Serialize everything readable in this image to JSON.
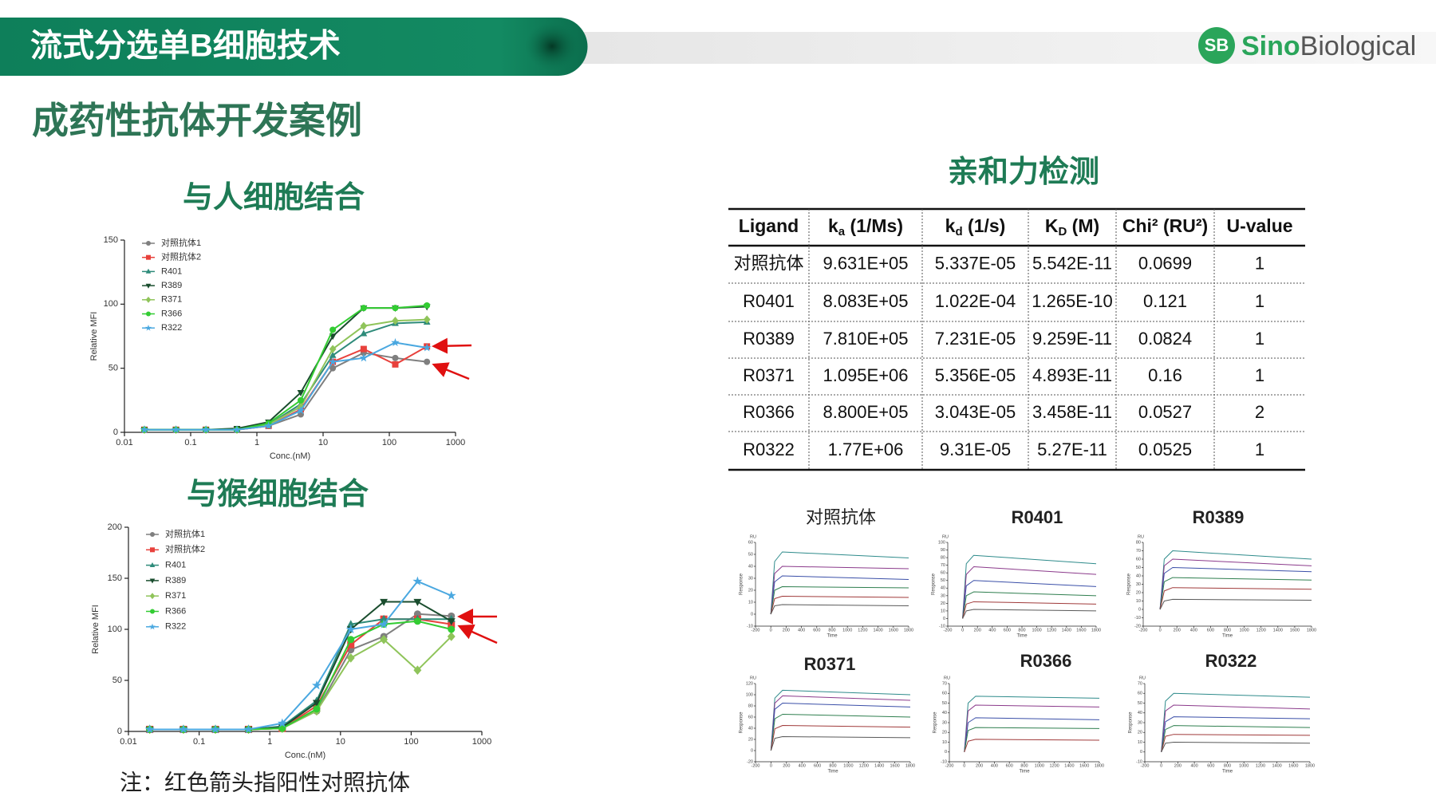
{
  "header": {
    "title": "流式分选单B细胞技术",
    "logo_mark": "SB",
    "logo_brand": "Sino",
    "logo_name": "Biological"
  },
  "section_title": "成药性抗体开发案例",
  "note": "注：红色箭头指阳性对照抗体",
  "affinity": {
    "title": "亲和力检测",
    "table": {
      "columns": [
        {
          "text": "Ligand"
        },
        {
          "text": "k",
          "sub": "a",
          "rest": " (1/Ms)"
        },
        {
          "text": "k",
          "sub": "d",
          "rest": " (1/s)"
        },
        {
          "text": "K",
          "sub": "D",
          "rest": " (M)"
        },
        {
          "text": "Chi² (RU²)"
        },
        {
          "text": "U-value"
        }
      ],
      "rows": [
        [
          "对照抗体",
          "9.631E+05",
          "5.337E-05",
          "5.542E-11",
          "0.0699",
          "1"
        ],
        [
          "R0401",
          "8.083E+05",
          "1.022E-04",
          "1.265E-10",
          "0.121",
          "1"
        ],
        [
          "R0389",
          "7.810E+05",
          "7.231E-05",
          "9.259E-11",
          "0.0824",
          "1"
        ],
        [
          "R0371",
          "1.095E+06",
          "5.356E-05",
          "4.893E-11",
          "0.16",
          "1"
        ],
        [
          "R0366",
          "8.800E+05",
          "3.043E-05",
          "3.458E-11",
          "0.0527",
          "2"
        ],
        [
          "R0322",
          "1.77E+06",
          "9.31E-05",
          "5.27E-11",
          "0.0525",
          "1"
        ]
      ]
    }
  },
  "chart_data": [
    {
      "type": "line",
      "title": "与人细胞结合",
      "xlabel": "Conc.(nM)",
      "ylabel": "Relative MFI",
      "log_x": true,
      "markers": true,
      "legend": "upper left",
      "x": [
        0.02,
        0.06,
        0.17,
        0.5,
        1.5,
        4.6,
        14,
        41,
        123,
        370
      ],
      "xlim": [
        0.01,
        1000
      ],
      "xticks": [
        0.01,
        0.1,
        1,
        10,
        100,
        1000
      ],
      "ylim": [
        0,
        150
      ],
      "yticks": [
        0,
        50,
        100,
        150
      ],
      "series": [
        {
          "name": "对照抗体1",
          "color": "#7f7f7f",
          "marker": "circle",
          "values": [
            2,
            2,
            2,
            2,
            5,
            14,
            50,
            62,
            58,
            55
          ]
        },
        {
          "name": "对照抗体2",
          "color": "#e8413c",
          "marker": "square",
          "values": [
            2,
            2,
            2,
            2,
            5,
            18,
            55,
            65,
            53,
            67
          ]
        },
        {
          "name": "R401",
          "color": "#2e8b7a",
          "marker": "triangle",
          "values": [
            2,
            2,
            2,
            2,
            6,
            22,
            60,
            77,
            85,
            86
          ]
        },
        {
          "name": "R389",
          "color": "#1a4d2e",
          "marker": "triangle-down",
          "values": [
            2,
            2,
            2,
            3,
            8,
            31,
            75,
            97,
            97,
            98
          ]
        },
        {
          "name": "R371",
          "color": "#8fc45a",
          "marker": "diamond",
          "values": [
            2,
            2,
            2,
            2,
            6,
            20,
            65,
            83,
            87,
            88
          ]
        },
        {
          "name": "R366",
          "color": "#33cc33",
          "marker": "circle",
          "values": [
            2,
            2,
            2,
            2,
            7,
            25,
            80,
            97,
            97,
            99
          ]
        },
        {
          "name": "R322",
          "color": "#4aa8e0",
          "marker": "star",
          "values": [
            2,
            2,
            2,
            2,
            5,
            17,
            55,
            58,
            70,
            66
          ]
        }
      ]
    },
    {
      "type": "line",
      "title": "与猴细胞结合",
      "xlabel": "Conc.(nM)",
      "ylabel": "Relative MFI",
      "log_x": true,
      "markers": true,
      "legend": "upper left",
      "x": [
        0.02,
        0.06,
        0.17,
        0.5,
        1.5,
        4.6,
        14,
        41,
        123,
        370
      ],
      "xlim": [
        0.01,
        1000
      ],
      "xticks": [
        0.01,
        0.1,
        1,
        10,
        100,
        1000
      ],
      "ylim": [
        0,
        200
      ],
      "yticks": [
        0,
        50,
        100,
        150,
        200
      ],
      "series": [
        {
          "name": "对照抗体1",
          "color": "#7f7f7f",
          "marker": "circle",
          "values": [
            2,
            2,
            2,
            2,
            3,
            20,
            80,
            93,
            115,
            113
          ]
        },
        {
          "name": "对照抗体2",
          "color": "#e8413c",
          "marker": "square",
          "values": [
            2,
            2,
            2,
            2,
            3,
            25,
            85,
            110,
            110,
            105
          ]
        },
        {
          "name": "R401",
          "color": "#2e8b7a",
          "marker": "triangle",
          "values": [
            2,
            2,
            2,
            2,
            5,
            30,
            105,
            110,
            110,
            110
          ]
        },
        {
          "name": "R389",
          "color": "#1a4d2e",
          "marker": "triangle-down",
          "values": [
            2,
            2,
            2,
            2,
            4,
            28,
            100,
            127,
            127,
            108
          ]
        },
        {
          "name": "R371",
          "color": "#8fc45a",
          "marker": "diamond",
          "values": [
            2,
            2,
            2,
            2,
            3,
            20,
            72,
            90,
            60,
            93
          ]
        },
        {
          "name": "R366",
          "color": "#33cc33",
          "marker": "circle",
          "values": [
            2,
            2,
            2,
            2,
            3,
            22,
            90,
            105,
            108,
            100
          ]
        },
        {
          "name": "R322",
          "color": "#4aa8e0",
          "marker": "star",
          "values": [
            2,
            2,
            2,
            2,
            8,
            45,
            100,
            105,
            147,
            133
          ]
        }
      ]
    },
    {
      "type": "line",
      "title": "对照抗体",
      "xlabel": "Time",
      "ylabel": "Response",
      "unit_label": "RU",
      "x": [
        0,
        50,
        150,
        1800
      ],
      "xlim": [
        -200,
        1800
      ],
      "xticks": [
        -200,
        0,
        200,
        400,
        600,
        800,
        1000,
        1200,
        1400,
        1600,
        1800
      ],
      "ylim": [
        -10,
        60
      ],
      "yticks": [
        -10,
        0,
        10,
        20,
        30,
        40,
        50,
        60
      ],
      "series": [
        {
          "color": "#2e8b8b",
          "values": [
            0,
            44,
            52,
            47
          ]
        },
        {
          "color": "#8b3a8b",
          "values": [
            0,
            34,
            40,
            38
          ]
        },
        {
          "color": "#3a4fa8",
          "values": [
            0,
            27,
            32,
            29
          ]
        },
        {
          "color": "#2f7f4f",
          "values": [
            0,
            20,
            23,
            22
          ]
        },
        {
          "color": "#a03a3a",
          "values": [
            0,
            13,
            15,
            14
          ]
        },
        {
          "color": "#5a5a5a",
          "values": [
            0,
            7,
            8,
            7
          ]
        }
      ]
    },
    {
      "type": "line",
      "title": "R0401",
      "xlabel": "Time",
      "ylabel": "Response",
      "unit_label": "RU",
      "x": [
        0,
        50,
        150,
        1800
      ],
      "xlim": [
        -200,
        1800
      ],
      "xticks": [
        -200,
        0,
        200,
        400,
        600,
        800,
        1000,
        1200,
        1400,
        1600,
        1800
      ],
      "ylim": [
        -10,
        100
      ],
      "yticks": [
        -10,
        0,
        10,
        20,
        30,
        40,
        50,
        60,
        70,
        80,
        90,
        100
      ],
      "series": [
        {
          "color": "#2e8b8b",
          "values": [
            0,
            72,
            83,
            72
          ]
        },
        {
          "color": "#8b3a8b",
          "values": [
            0,
            58,
            68,
            58
          ]
        },
        {
          "color": "#3a4fa8",
          "values": [
            0,
            43,
            50,
            42
          ]
        },
        {
          "color": "#2f7f4f",
          "values": [
            0,
            30,
            35,
            30
          ]
        },
        {
          "color": "#a03a3a",
          "values": [
            0,
            19,
            22,
            19
          ]
        },
        {
          "color": "#5a5a5a",
          "values": [
            0,
            10,
            12,
            10
          ]
        }
      ]
    },
    {
      "type": "line",
      "title": "R0389",
      "xlabel": "Time",
      "ylabel": "Response",
      "unit_label": "RU",
      "x": [
        0,
        50,
        150,
        1800
      ],
      "xlim": [
        -200,
        1800
      ],
      "xticks": [
        -200,
        0,
        200,
        400,
        600,
        800,
        1000,
        1200,
        1400,
        1600,
        1800
      ],
      "ylim": [
        -20,
        80
      ],
      "yticks": [
        -20,
        -10,
        0,
        10,
        20,
        30,
        40,
        50,
        60,
        70,
        80
      ],
      "series": [
        {
          "color": "#2e8b8b",
          "values": [
            0,
            60,
            70,
            60
          ]
        },
        {
          "color": "#8b3a8b",
          "values": [
            0,
            52,
            60,
            52
          ]
        },
        {
          "color": "#3a4fa8",
          "values": [
            0,
            43,
            50,
            45
          ]
        },
        {
          "color": "#2f7f4f",
          "values": [
            0,
            33,
            38,
            35
          ]
        },
        {
          "color": "#a03a3a",
          "values": [
            0,
            22,
            26,
            24
          ]
        },
        {
          "color": "#5a5a5a",
          "values": [
            0,
            10,
            12,
            11
          ]
        }
      ]
    },
    {
      "type": "line",
      "title": "R0371",
      "xlabel": "Time",
      "ylabel": "Response",
      "unit_label": "RU",
      "x": [
        0,
        50,
        150,
        1800
      ],
      "xlim": [
        -200,
        1800
      ],
      "xticks": [
        -200,
        0,
        200,
        400,
        600,
        800,
        1000,
        1200,
        1400,
        1600,
        1800
      ],
      "ylim": [
        -20,
        120
      ],
      "yticks": [
        -20,
        0,
        20,
        40,
        60,
        80,
        100,
        120
      ],
      "series": [
        {
          "color": "#2e8b8b",
          "values": [
            0,
            94,
            108,
            100
          ]
        },
        {
          "color": "#8b3a8b",
          "values": [
            0,
            85,
            98,
            90
          ]
        },
        {
          "color": "#3a4fa8",
          "values": [
            0,
            74,
            85,
            78
          ]
        },
        {
          "color": "#2f7f4f",
          "values": [
            0,
            57,
            65,
            60
          ]
        },
        {
          "color": "#a03a3a",
          "values": [
            0,
            39,
            45,
            42
          ]
        },
        {
          "color": "#5a5a5a",
          "values": [
            0,
            22,
            25,
            23
          ]
        }
      ]
    },
    {
      "type": "line",
      "title": "R0366",
      "xlabel": "Time",
      "ylabel": "Response",
      "unit_label": "RU",
      "x": [
        0,
        50,
        150,
        1800
      ],
      "xlim": [
        -200,
        1800
      ],
      "xticks": [
        -200,
        0,
        200,
        400,
        600,
        800,
        1000,
        1200,
        1400,
        1600,
        1800
      ],
      "ylim": [
        -10,
        70
      ],
      "yticks": [
        -10,
        0,
        10,
        20,
        30,
        40,
        50,
        60,
        70
      ],
      "series": [
        {
          "color": "#2e8b8b",
          "values": [
            0,
            50,
            57,
            55
          ]
        },
        {
          "color": "#8b3a8b",
          "values": [
            0,
            42,
            48,
            46
          ]
        },
        {
          "color": "#3a4fa8",
          "values": [
            0,
            30,
            35,
            33
          ]
        },
        {
          "color": "#2f7f4f",
          "values": [
            0,
            22,
            25,
            24
          ]
        },
        {
          "color": "#a03a3a",
          "values": [
            0,
            11,
            13,
            12
          ]
        }
      ]
    },
    {
      "type": "line",
      "title": "R0322",
      "xlabel": "Time",
      "ylabel": "Response",
      "unit_label": "RU",
      "x": [
        0,
        50,
        150,
        1800
      ],
      "xlim": [
        -200,
        1800
      ],
      "xticks": [
        -200,
        0,
        200,
        400,
        600,
        800,
        1000,
        1200,
        1400,
        1600,
        1800
      ],
      "ylim": [
        -10,
        70
      ],
      "yticks": [
        -10,
        0,
        10,
        20,
        30,
        40,
        50,
        60,
        70
      ],
      "series": [
        {
          "color": "#2e8b8b",
          "values": [
            0,
            52,
            60,
            56
          ]
        },
        {
          "color": "#8b3a8b",
          "values": [
            0,
            42,
            48,
            44
          ]
        },
        {
          "color": "#3a4fa8",
          "values": [
            0,
            31,
            36,
            34
          ]
        },
        {
          "color": "#2f7f4f",
          "values": [
            0,
            23,
            27,
            25
          ]
        },
        {
          "color": "#a03a3a",
          "values": [
            0,
            16,
            18,
            17
          ]
        },
        {
          "color": "#5a5a5a",
          "values": [
            0,
            9,
            10,
            9
          ]
        }
      ]
    }
  ]
}
